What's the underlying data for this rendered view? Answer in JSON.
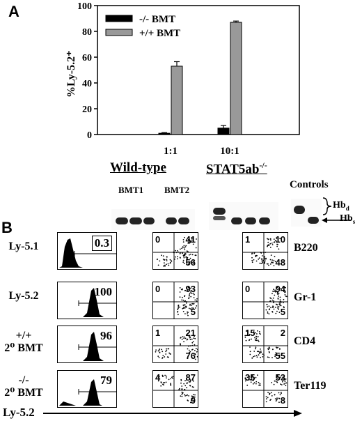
{
  "panel_a": {
    "letter": "A",
    "ylabel": "%Ly-5.2⁺",
    "yticks": [
      "0",
      "20",
      "40",
      "60",
      "80",
      "100"
    ],
    "chart_data": {
      "type": "bar",
      "categories": [
        "1:1",
        "10:1"
      ],
      "series": [
        {
          "name": "-/- BMT",
          "values": [
            1,
            5
          ],
          "errors": [
            0.5,
            2
          ],
          "color": "#000000"
        },
        {
          "name": "+/+ BMT",
          "values": [
            53,
            87
          ],
          "errors": [
            3.5,
            1
          ],
          "color": "#999999"
        }
      ],
      "ylim": [
        0,
        100
      ],
      "ylabel": "%Ly-5.2⁺",
      "legend": "top-left"
    }
  },
  "panel_b": {
    "letter": "B",
    "wildtype_label": "Wild-type",
    "stat_label": "STAT5ab",
    "stat_sup": "-/-",
    "controls_label": "Controls",
    "bmt1_label": "BMT1",
    "bmt2_label": "BMT2",
    "hbd_label": "Hb",
    "hbd_sub": "d",
    "hbs_label": "Hb",
    "hbs_sub": "s",
    "rows": [
      {
        "label": "Ly-5.1",
        "hist_value": "0.3",
        "wt": [
          "0",
          "41",
          "56"
        ],
        "ko": [
          "1",
          "10",
          "48"
        ],
        "marker": "B220"
      },
      {
        "label": "Ly-5.2",
        "hist_value": "100",
        "wt": [
          "0",
          "93",
          "5"
        ],
        "ko": [
          "0",
          "94",
          "5"
        ],
        "marker": "Gr-1"
      },
      {
        "label": "+/+\n2⁰ BMT",
        "hist_value": "96",
        "wt": [
          "1",
          "21",
          "76"
        ],
        "ko": [
          "15",
          "2",
          "55"
        ],
        "marker": "CD4"
      },
      {
        "label": "-/-\n2⁰ BMT",
        "hist_value": "79",
        "wt": [
          "4",
          "87",
          "9"
        ],
        "ko": [
          "35",
          "53",
          "8"
        ],
        "marker": "Ter119"
      }
    ],
    "x_axis_label": "Ly-5.2"
  }
}
